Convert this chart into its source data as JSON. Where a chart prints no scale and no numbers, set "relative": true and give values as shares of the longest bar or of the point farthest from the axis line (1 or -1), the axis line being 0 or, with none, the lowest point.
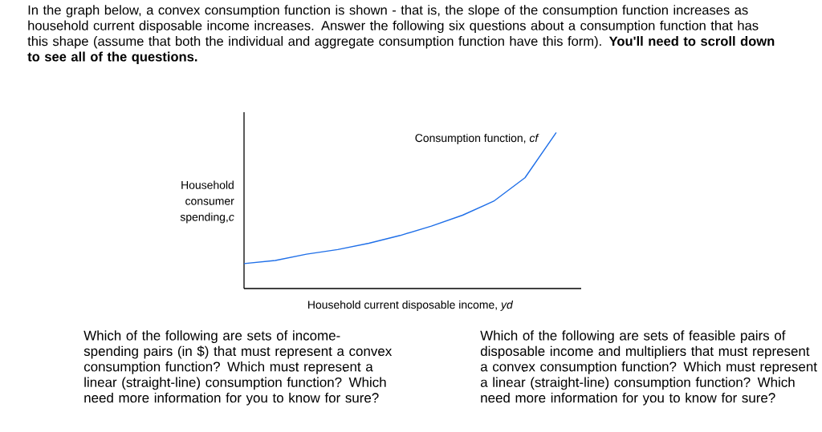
{
  "chart_data": {
    "type": "line",
    "title": "In the graph below, a convex consumption function is shown - that is, the slope of the consumption function increases as household current disposable income increases.  Answer the following six questions about a consumption function that has this shape (assume that both the individual and aggregate consumption function have this form). **You'll need to scroll down to see all of the questions.**",
    "xlabel": "Household current disposable income, *yd*",
    "ylabel": "Household consumer spending,*c*",
    "relative": true,
    "categories": [
      null,
      null,
      null,
      null,
      null,
      null,
      null,
      null,
      null,
      null,
      null
    ],
    "series": [
      {
        "name": "Consumption function, *cf*",
        "color": "#1f6fe8",
        "values": [
          0.16,
          0.18,
          0.22,
          0.25,
          0.29,
          0.34,
          0.4,
          0.47,
          0.56,
          0.71,
          1.0
        ]
      }
    ],
    "annotations": [
      "Which of the following are sets of income-spending pairs (in $) that must represent a convex consumption function? Which must represent a linear (straight-line) consumption function? Which need more information for you to know for sure?",
      "Which of the following are sets of feasible pairs of disposable income and multipliers that must represent a convex consumption function? Which must represent a linear (straight-line) consumption function? Which need more information for you to know for sure?"
    ]
  }
}
